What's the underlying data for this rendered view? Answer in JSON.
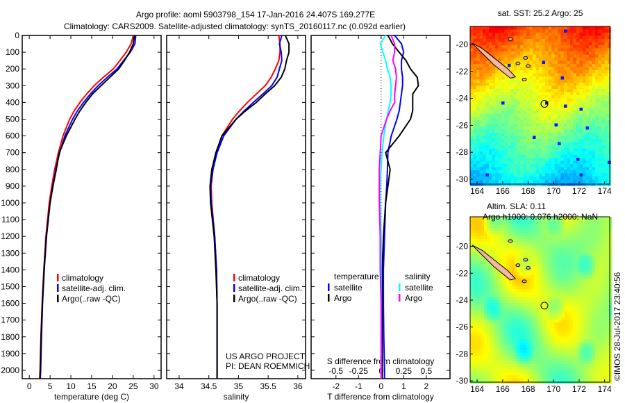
{
  "title_line1": "Argo profile: aoml 5903798_154 17-Jan-2016 24.407S 169.277E",
  "title_line2": "Climatology: CARS2009. Satellite-adjusted climatology: synTS_20160117.nc (0.092d earlier)",
  "credit": "US ARGO PROJECT",
  "pi": "PI: DEAN ROEMMICH",
  "copyright": "©IMOS 28-Jul-2017 23:40:56",
  "colors": {
    "climatology": "#ff0000",
    "satellite": "#0000ff",
    "argo": "#000000",
    "s_satellite": "#00ffff",
    "s_argo": "#ff00ff"
  },
  "chart_data": [
    {
      "type": "line",
      "xlabel": "temperature (deg C)",
      "ylabel": "depth",
      "xlim": [
        -1.7,
        31.7
      ],
      "ylim": [
        2050,
        0
      ],
      "xticks": [
        0,
        5,
        10,
        15,
        20,
        25,
        30
      ],
      "yticks": [
        0,
        100,
        200,
        300,
        400,
        500,
        600,
        700,
        800,
        900,
        1000,
        1100,
        1200,
        1300,
        1400,
        1500,
        1600,
        1700,
        1800,
        1900,
        2000
      ],
      "depth": [
        0,
        50,
        100,
        150,
        200,
        250,
        300,
        350,
        400,
        450,
        500,
        600,
        700,
        800,
        900,
        1000,
        1200,
        1400,
        1600,
        1800,
        2000,
        2050
      ],
      "series": [
        {
          "name": "climatology",
          "values": [
            25,
            24.5,
            23.3,
            21.8,
            20.2,
            17.8,
            15.6,
            13.8,
            12.2,
            10.8,
            9.7,
            8.1,
            7.0,
            6.1,
            5.4,
            4.8,
            4.0,
            3.5,
            3.1,
            2.8,
            2.6,
            2.5
          ]
        },
        {
          "name": "satellite-adj. clim.",
          "values": [
            25.6,
            25.4,
            24.3,
            22.7,
            21.1,
            18.75,
            16.55,
            14.7,
            13.05,
            11.6,
            10.4,
            8.55,
            7.3,
            6.38,
            5.65,
            5.0,
            4.15,
            3.6,
            3.2,
            2.92,
            2.75,
            2.65
          ]
        },
        {
          "name": "Argo(..raw -QC)",
          "values": [
            25.3,
            25.0,
            24.1,
            22.9,
            21.5,
            19.4,
            17.25,
            15.2,
            13.6,
            12.2,
            11.0,
            8.9,
            7.2,
            6.5,
            5.7,
            5.0,
            4.1,
            3.55,
            3.15,
            2.85,
            2.65,
            2.55
          ]
        }
      ],
      "legend": [
        "climatology",
        "satellite-adj. clim.",
        "Argo(..raw -QC)"
      ]
    },
    {
      "type": "line",
      "xlabel": "salinity",
      "xlim": [
        33.79,
        36.13
      ],
      "ylim": [
        2050,
        0
      ],
      "xticks": [
        34,
        34.5,
        35,
        35.5,
        36
      ],
      "depth": [
        0,
        50,
        100,
        150,
        200,
        250,
        300,
        350,
        400,
        450,
        500,
        600,
        700,
        800,
        900,
        1000,
        1200,
        1400,
        1600,
        1800,
        2000,
        2050
      ],
      "series": [
        {
          "name": "climatology",
          "values": [
            35.68,
            35.7,
            35.7,
            35.68,
            35.62,
            35.55,
            35.45,
            35.3,
            35.15,
            35.02,
            34.9,
            34.72,
            34.63,
            34.57,
            34.54,
            34.55,
            34.6,
            34.63,
            34.64,
            34.64,
            34.64,
            34.64
          ]
        },
        {
          "name": "satellite-adj. clim.",
          "values": [
            35.73,
            35.69,
            35.72,
            35.73,
            35.69,
            35.65,
            35.56,
            35.41,
            35.25,
            35.1,
            34.96,
            34.75,
            34.64,
            34.57,
            34.53,
            34.54,
            34.6,
            34.63,
            34.64,
            34.64,
            34.64,
            34.64
          ]
        },
        {
          "name": "Argo(..raw -QC)",
          "values": [
            35.79,
            35.85,
            35.85,
            35.81,
            35.78,
            35.72,
            35.61,
            35.45,
            35.3,
            35.12,
            34.96,
            34.72,
            34.62,
            34.55,
            34.52,
            34.53,
            34.59,
            34.62,
            34.64,
            34.64,
            34.64,
            34.64
          ]
        }
      ],
      "legend": [
        "climatology",
        "satellite-adj. clim.",
        "Argo(..raw -QC)"
      ]
    },
    {
      "type": "line",
      "xlabel": "T difference from climatology",
      "xlabel2": "S difference from climatology",
      "xlim": [
        -3.1,
        3.05
      ],
      "xlim_s": [
        -0.775,
        0.7625
      ],
      "ylim": [
        2050,
        0
      ],
      "xticks": [
        "-2",
        "-1",
        "0",
        "1",
        "2"
      ],
      "xticks_s": [
        "-0.5",
        "-0.25",
        "0",
        "0.25",
        "0.5"
      ],
      "depth": [
        0,
        50,
        100,
        150,
        200,
        250,
        300,
        350,
        400,
        450,
        500,
        600,
        700,
        800,
        900,
        1000,
        1200,
        1400,
        1600,
        1800,
        2000,
        2050
      ],
      "series": [
        {
          "name": "temperature satellite",
          "quantity": "T",
          "values": [
            0.6,
            0.9,
            1.0,
            0.9,
            0.9,
            0.95,
            0.95,
            0.9,
            0.85,
            0.8,
            0.7,
            0.45,
            0.3,
            0.28,
            0.25,
            0.2,
            0.15,
            0.1,
            0.1,
            0.12,
            0.15,
            0.15
          ]
        },
        {
          "name": "temperature Argo",
          "quantity": "T",
          "values": [
            0.3,
            0.5,
            0.8,
            1.1,
            1.3,
            1.6,
            1.65,
            1.4,
            1.4,
            1.4,
            1.3,
            0.8,
            0.2,
            0.4,
            0.3,
            0.2,
            0.1,
            0.05,
            0.05,
            0.05,
            0.05,
            0.05
          ]
        },
        {
          "name": "salinity satellite",
          "quantity": "S",
          "values": [
            0.05,
            -0.01,
            0.02,
            0.05,
            0.07,
            0.1,
            0.11,
            0.11,
            0.1,
            0.08,
            0.06,
            0.03,
            0.01,
            0.0,
            -0.01,
            -0.01,
            0,
            0,
            0,
            0,
            0,
            0
          ]
        },
        {
          "name": "salinity Argo",
          "quantity": "S",
          "values": [
            0.11,
            0.15,
            0.15,
            0.13,
            0.16,
            0.17,
            0.16,
            0.15,
            0.15,
            0.1,
            0.06,
            0.0,
            -0.01,
            -0.02,
            -0.02,
            -0.02,
            -0.01,
            -0.01,
            0,
            0,
            0,
            0
          ]
        }
      ],
      "legend": {
        "temperature_title": "temperature",
        "salinity_title": "salinity",
        "satellite": "satellite",
        "argo": "Argo"
      }
    },
    {
      "type": "heatmap",
      "title": "sat. SST: 25.2 Argo: 25",
      "xlim": [
        163.45,
        174.4
      ],
      "ylim": [
        -30.36,
        -18.66
      ],
      "xticks": [
        164,
        166,
        168,
        170,
        172,
        174
      ],
      "yticks": [
        -20,
        -22,
        -24,
        -26,
        -28,
        -30
      ],
      "profile_location": [
        169.277,
        -24.407
      ]
    },
    {
      "type": "heatmap",
      "title": "Altim. SLA: 0.11",
      "subtitle": "Argo h1000: 0.076 h2000: NaN",
      "xlim": [
        163.45,
        174.4
      ],
      "ylim": [
        -30.1,
        -17.8
      ],
      "xticks": [
        164,
        166,
        168,
        170,
        172,
        174
      ],
      "yticks": [
        -20,
        -22,
        -24,
        -26,
        -28,
        -30
      ],
      "profile_location": [
        169.277,
        -24.407
      ]
    }
  ]
}
